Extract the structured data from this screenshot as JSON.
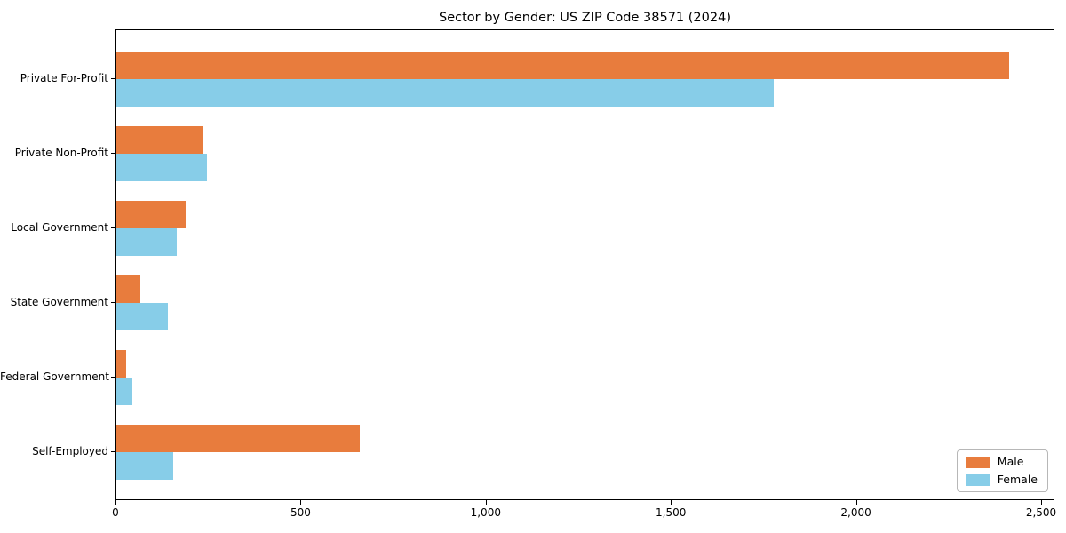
{
  "chart_data": {
    "type": "bar",
    "orientation": "horizontal",
    "title": "Sector by Gender: US ZIP Code 38571 (2024)",
    "categories": [
      "Private For-Profit",
      "Private Non-Profit",
      "Local Government",
      "State Government",
      "Federal Government",
      "Self-Employed"
    ],
    "series": [
      {
        "name": "Male",
        "color": "#e87c3d",
        "values": [
          2410,
          233,
          187,
          65,
          27,
          657
        ]
      },
      {
        "name": "Female",
        "color": "#87cde8",
        "values": [
          1775,
          245,
          163,
          139,
          43,
          154
        ]
      }
    ],
    "xlabel": "",
    "ylabel": "",
    "xlim": [
      0,
      2536
    ],
    "xticks": [
      0,
      500,
      1000,
      1500,
      2000,
      2500
    ],
    "xtick_labels": [
      "0",
      "500",
      "1,000",
      "1,500",
      "2,000",
      "2,500"
    ],
    "grid": false,
    "legend": {
      "position": "lower right",
      "entries": [
        "Male",
        "Female"
      ]
    }
  }
}
